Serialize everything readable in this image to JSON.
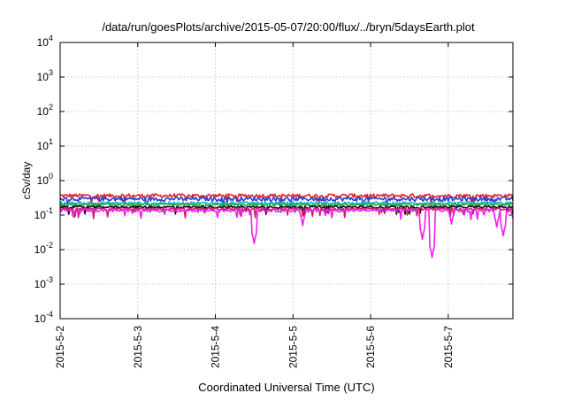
{
  "chart_data": {
    "type": "line",
    "title": "/data/run/goesPlots/archive/2015-05-07/20:00/flux/../bryn/5daysEarth.plot",
    "xlabel": "Coordinated Universal Time (UTC)",
    "ylabel": "cSv/day",
    "yscale": "log",
    "ylim": [
      0.0001,
      10000
    ],
    "xlim": [
      "2015-05-02",
      "2015-05-07 20:00"
    ],
    "x_ticks": [
      "2015-5-2",
      "2015-5-3",
      "2015-5-4",
      "2015-5-5",
      "2015-5-6",
      "2015-5-7"
    ],
    "y_ticks": [
      {
        "base": "10",
        "exp": "-4",
        "value": 0.0001
      },
      {
        "base": "10",
        "exp": "-3",
        "value": 0.001
      },
      {
        "base": "10",
        "exp": "-2",
        "value": 0.01
      },
      {
        "base": "10",
        "exp": "-1",
        "value": 0.1
      },
      {
        "base": "10",
        "exp": "0",
        "value": 1
      },
      {
        "base": "10",
        "exp": "1",
        "value": 10
      },
      {
        "base": "10",
        "exp": "2",
        "value": 100
      },
      {
        "base": "10",
        "exp": "3",
        "value": 1000
      },
      {
        "base": "10",
        "exp": "4",
        "value": 10000
      }
    ],
    "grid": true,
    "legend": "none",
    "series": [
      {
        "color": "#e8202a",
        "base": 0.36,
        "noise": 0.13
      },
      {
        "color": "#2340d8",
        "base": 0.29,
        "noise": 0.14
      },
      {
        "color": "#18b8c8",
        "base": 0.22,
        "noise": 0.1
      },
      {
        "color": "#2da34a",
        "base": 0.2,
        "noise": 0.08
      },
      {
        "color": "#111111",
        "base": 0.17,
        "noise": 0.07
      },
      {
        "color": "#c8206c",
        "base": 0.15,
        "noise": 0.07
      },
      {
        "color": "#f21ef2",
        "base": 0.135,
        "noise": 0.09,
        "dips": [
          {
            "x": "2015-05-04 12:00",
            "value": 0.015
          },
          {
            "x": "2015-05-05 03:00",
            "value": 0.05
          },
          {
            "x": "2015-05-06 16:00",
            "value": 0.02
          },
          {
            "x": "2015-05-06 19:00",
            "value": 0.006
          },
          {
            "x": "2015-05-07 01:00",
            "value": 0.055
          },
          {
            "x": "2015-05-07 15:00",
            "value": 0.045
          },
          {
            "x": "2015-05-07 17:00",
            "value": 0.025
          }
        ]
      }
    ]
  }
}
